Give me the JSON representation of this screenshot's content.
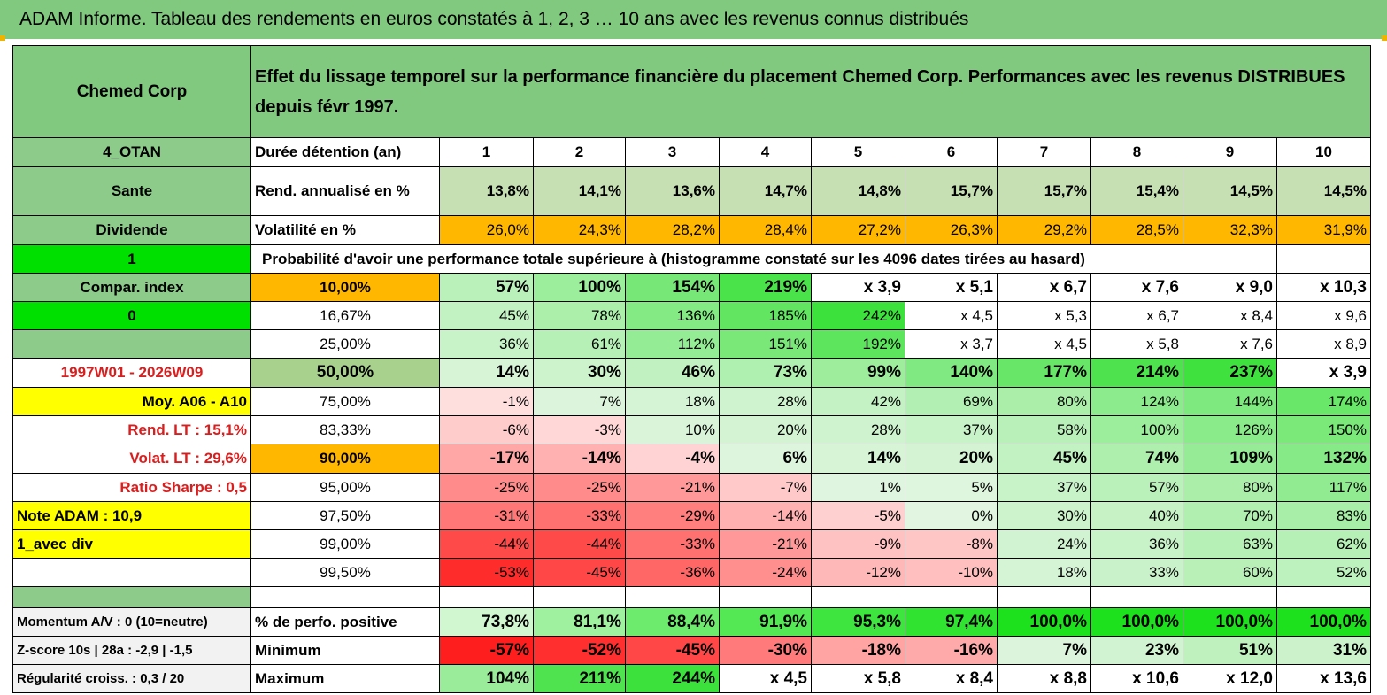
{
  "title": "ADAM Informe. Tableau des rendements en euros constatés à 1, 2, 3 … 10 ans avec les revenus connus distribués",
  "header": {
    "company": "Chemed Corp",
    "description": "Effet du lissage temporel sur la performance financière du placement Chemed Corp. Performances avec les revenus DISTRIBUES depuis févr 1997."
  },
  "left_labels": {
    "code": "4_OTAN",
    "sector": "Sante",
    "type": "Dividende",
    "flag1": "1",
    "compar": "Compar. index",
    "flag0": "0",
    "period": "1997W01 - 2026W09",
    "moy": "Moy. A06 - A10",
    "rend_lt": "Rend. LT :   15,1%",
    "volat_lt": "Volat. LT :   29,6%",
    "sharpe": "Ratio Sharpe :    0,5",
    "note": "Note ADAM : 10,9",
    "avec_div": "1_avec div",
    "momentum": "Momentum A/V : 0 (10=neutre)",
    "zscore": "Z-score 10s | 28a : -2,9 | -1,5",
    "regularite": "Régularité croiss. : 0,3 / 20"
  },
  "row_labels": {
    "duree": "Durée détention (an)",
    "rend": "Rend. annualisé en %",
    "volat": "Volatilité en %",
    "proba": "Probabilité d'avoir une performance totale supérieure à (histogramme constaté sur les 4096 dates tirées au hasard)",
    "positive": "% de perfo. positive",
    "minimum": "Minimum",
    "maximum": "Maximum"
  },
  "years": [
    "1",
    "2",
    "3",
    "4",
    "5",
    "6",
    "7",
    "8",
    "9",
    "10"
  ],
  "rend": [
    "13,8%",
    "14,1%",
    "13,6%",
    "14,7%",
    "14,8%",
    "15,7%",
    "15,7%",
    "15,4%",
    "14,5%",
    "14,5%"
  ],
  "volat": [
    "26,0%",
    "24,3%",
    "28,2%",
    "28,4%",
    "27,2%",
    "26,3%",
    "29,2%",
    "28,5%",
    "32,3%",
    "31,9%"
  ],
  "percentiles": [
    {
      "p": "10,00%",
      "v": [
        "57%",
        "100%",
        "154%",
        "219%",
        "x 3,9",
        "x 5,1",
        "x 6,7",
        "x 7,6",
        "x 9,0",
        "x 10,3"
      ]
    },
    {
      "p": "16,67%",
      "v": [
        "45%",
        "78%",
        "136%",
        "185%",
        "242%",
        "x 4,5",
        "x 5,3",
        "x 6,7",
        "x 8,4",
        "x 9,6"
      ]
    },
    {
      "p": "25,00%",
      "v": [
        "36%",
        "61%",
        "112%",
        "151%",
        "192%",
        "x 3,7",
        "x 4,5",
        "x 5,8",
        "x 7,6",
        "x 8,9"
      ]
    },
    {
      "p": "50,00%",
      "v": [
        "14%",
        "30%",
        "46%",
        "73%",
        "99%",
        "140%",
        "177%",
        "214%",
        "237%",
        "x 3,9"
      ]
    },
    {
      "p": "75,00%",
      "v": [
        "-1%",
        "7%",
        "18%",
        "28%",
        "42%",
        "69%",
        "80%",
        "124%",
        "144%",
        "174%"
      ]
    },
    {
      "p": "83,33%",
      "v": [
        "-6%",
        "-3%",
        "10%",
        "20%",
        "28%",
        "37%",
        "58%",
        "100%",
        "126%",
        "150%"
      ]
    },
    {
      "p": "90,00%",
      "v": [
        "-17%",
        "-14%",
        "-4%",
        "6%",
        "14%",
        "20%",
        "45%",
        "74%",
        "109%",
        "132%"
      ]
    },
    {
      "p": "95,00%",
      "v": [
        "-25%",
        "-25%",
        "-21%",
        "-7%",
        "1%",
        "5%",
        "37%",
        "57%",
        "80%",
        "117%"
      ]
    },
    {
      "p": "97,50%",
      "v": [
        "-31%",
        "-33%",
        "-29%",
        "-14%",
        "-5%",
        "0%",
        "30%",
        "40%",
        "70%",
        "83%"
      ]
    },
    {
      "p": "99,00%",
      "v": [
        "-44%",
        "-44%",
        "-33%",
        "-21%",
        "-9%",
        "-8%",
        "24%",
        "36%",
        "63%",
        "62%"
      ]
    },
    {
      "p": "99,50%",
      "v": [
        "-53%",
        "-45%",
        "-36%",
        "-24%",
        "-12%",
        "-10%",
        "18%",
        "33%",
        "60%",
        "52%"
      ]
    }
  ],
  "positive": [
    "73,8%",
    "81,1%",
    "88,4%",
    "91,9%",
    "95,3%",
    "97,4%",
    "100,0%",
    "100,0%",
    "100,0%",
    "100,0%"
  ],
  "minimum": [
    "-57%",
    "-52%",
    "-45%",
    "-30%",
    "-18%",
    "-16%",
    "7%",
    "23%",
    "51%",
    "31%"
  ],
  "maximum": [
    "104%",
    "211%",
    "244%",
    "x 4,5",
    "x 5,8",
    "x 8,4",
    "x 8,8",
    "x 10,6",
    "x 12,0",
    "x 13,6"
  ],
  "colors": {
    "header_green": "#80C97E",
    "label_green": "#8CCB89",
    "bright_green": "#00E000",
    "orange": "#FFB700",
    "yellow": "#FFFF00",
    "label_red": "#D81E1E",
    "rend_green": "#C6E0B4"
  }
}
